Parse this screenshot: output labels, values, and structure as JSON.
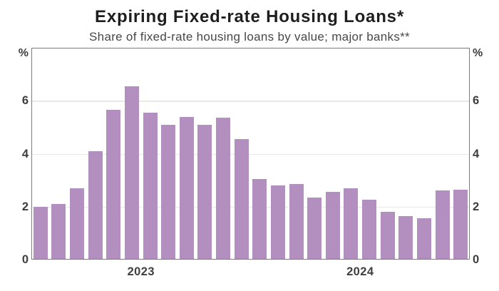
{
  "chart_data": {
    "type": "bar",
    "title": "Expiring Fixed-rate Housing Loans*",
    "subtitle": "Share of fixed-rate housing loans by value; major banks**",
    "categories": [
      "2023-01",
      "2023-02",
      "2023-03",
      "2023-04",
      "2023-05",
      "2023-06",
      "2023-07",
      "2023-08",
      "2023-09",
      "2023-10",
      "2023-11",
      "2023-12",
      "2024-01",
      "2024-02",
      "2024-03",
      "2024-04",
      "2024-05",
      "2024-06",
      "2024-07",
      "2024-08",
      "2024-09",
      "2024-10",
      "2024-11",
      "2024-12"
    ],
    "values": [
      2.0,
      2.1,
      2.7,
      4.1,
      5.65,
      6.55,
      5.55,
      5.1,
      5.4,
      5.1,
      5.35,
      4.55,
      3.05,
      2.8,
      2.85,
      2.35,
      2.55,
      2.7,
      2.25,
      1.8,
      1.65,
      1.55,
      2.6,
      2.65
    ],
    "xlabel": "",
    "ylabel": "",
    "y_axis": {
      "unit_left": "%",
      "unit_right": "%",
      "ticks": [
        0,
        2,
        4,
        6
      ],
      "ylim": [
        0,
        8
      ],
      "grid": true,
      "labels_both_sides": true
    },
    "x_axis": {
      "year_labels": [
        {
          "label": "2023",
          "position_frac": 0.25
        },
        {
          "label": "2024",
          "position_frac": 0.75
        }
      ]
    },
    "legend_position": "none",
    "colors": {
      "bar": "#b28fbe",
      "frame": "#7c7c7c",
      "gridline": "#e8e8e8",
      "title_text": "#1e1e1e",
      "subtitle_text": "#474747",
      "tick_text": "#3d3d3d"
    }
  }
}
